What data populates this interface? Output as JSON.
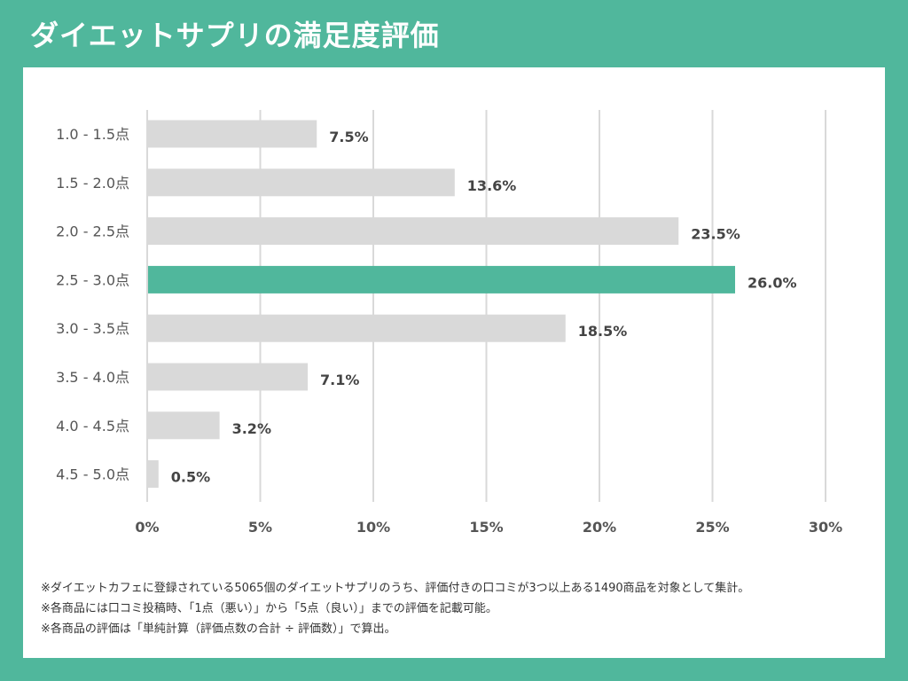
{
  "title": "ダイエットサプリの満足度評価",
  "colors": {
    "background": "#50b79c",
    "highlight": "#50b79c",
    "bar": "#d9d9d9",
    "grid": "#d9d9d9"
  },
  "chart_data": {
    "type": "bar",
    "orientation": "horizontal",
    "categories": [
      "1.0 - 1.5点",
      "1.5 - 2.0点",
      "2.0 - 2.5点",
      "2.5 - 3.0点",
      "3.0 - 3.5点",
      "3.5 - 4.0点",
      "4.0 - 4.5点",
      "4.5 - 5.0点"
    ],
    "values": [
      7.5,
      13.6,
      23.5,
      26.0,
      18.5,
      7.1,
      3.2,
      0.5
    ],
    "value_labels": [
      "7.5%",
      "13.6%",
      "23.5%",
      "26.0%",
      "18.5%",
      "7.1%",
      "3.2%",
      "0.5%"
    ],
    "highlight_index": 3,
    "xlim": [
      0,
      30
    ],
    "xticks": [
      0,
      5,
      10,
      15,
      20,
      25,
      30
    ],
    "xtick_labels": [
      "0%",
      "5%",
      "10%",
      "15%",
      "20%",
      "25%",
      "30%"
    ],
    "grid": true
  },
  "notes": [
    "※ダイエットカフェに登録されている5065個のダイエットサプリのうち、評価付きの口コミが3つ以上ある1490商品を対象として集計。",
    "※各商品には口コミ投稿時、「1点（悪い）」から「5点（良い）」までの評価を記載可能。",
    "※各商品の評価は「単純計算（評価点数の合計 ÷ 評価数）」で算出。"
  ]
}
